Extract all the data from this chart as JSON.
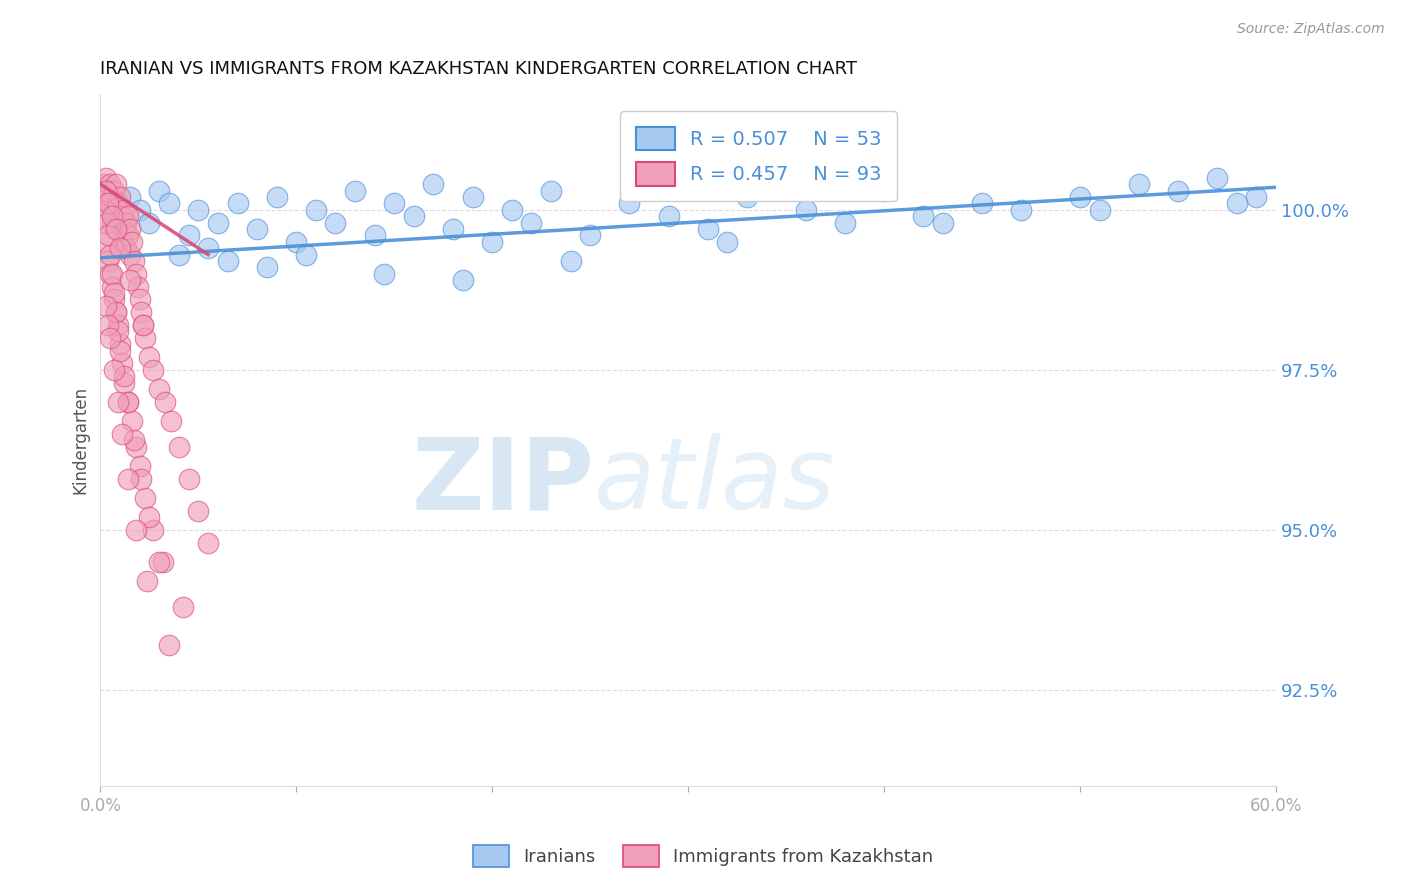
{
  "title": "IRANIAN VS IMMIGRANTS FROM KAZAKHSTAN KINDERGARTEN CORRELATION CHART",
  "source_text": "Source: ZipAtlas.com",
  "ylabel": "Kindergarten",
  "xlim": [
    0.0,
    60.0
  ],
  "ylim": [
    91.0,
    101.8
  ],
  "yticks": [
    92.5,
    95.0,
    97.5,
    100.0
  ],
  "ytick_labels": [
    "92.5%",
    "95.0%",
    "97.5%",
    "100.0%"
  ],
  "xticks": [
    0.0,
    10.0,
    20.0,
    30.0,
    40.0,
    50.0,
    60.0
  ],
  "xtick_labels": [
    "0.0%",
    "",
    "",
    "",
    "",
    "",
    "60.0%"
  ],
  "blue_color": "#a8c8f0",
  "pink_color": "#f0a0b8",
  "blue_line_color": "#4a90d9",
  "pink_line_color": "#d94a7a",
  "legend_R_blue": "R = 0.507",
  "legend_N_blue": "N = 53",
  "legend_R_pink": "R = 0.457",
  "legend_N_pink": "N = 93",
  "watermark_zip": "ZIP",
  "watermark_atlas": "atlas",
  "background_color": "#ffffff",
  "title_color": "#111111",
  "axis_label_color": "#555555",
  "tick_color": "#aaaaaa",
  "right_tick_color": "#4a90d9",
  "blue_scatter_x": [
    1.5,
    2.0,
    2.5,
    3.0,
    3.5,
    4.5,
    5.0,
    5.5,
    6.0,
    7.0,
    8.0,
    9.0,
    10.0,
    11.0,
    12.0,
    13.0,
    14.0,
    15.0,
    16.0,
    17.0,
    18.0,
    19.0,
    20.0,
    21.0,
    22.0,
    23.0,
    25.0,
    27.0,
    29.0,
    31.0,
    33.0,
    36.0,
    38.0,
    40.0,
    42.0,
    45.0,
    47.0,
    50.0,
    53.0,
    55.0,
    57.0,
    59.0,
    4.0,
    6.5,
    8.5,
    10.5,
    14.5,
    18.5,
    24.0,
    32.0,
    43.0,
    51.0,
    58.0
  ],
  "blue_scatter_y": [
    100.2,
    100.0,
    99.8,
    100.3,
    100.1,
    99.6,
    100.0,
    99.4,
    99.8,
    100.1,
    99.7,
    100.2,
    99.5,
    100.0,
    99.8,
    100.3,
    99.6,
    100.1,
    99.9,
    100.4,
    99.7,
    100.2,
    99.5,
    100.0,
    99.8,
    100.3,
    99.6,
    100.1,
    99.9,
    99.7,
    100.2,
    100.0,
    99.8,
    100.3,
    99.9,
    100.1,
    100.0,
    100.2,
    100.4,
    100.3,
    100.5,
    100.2,
    99.3,
    99.2,
    99.1,
    99.3,
    99.0,
    98.9,
    99.2,
    99.5,
    99.8,
    100.0,
    100.1
  ],
  "pink_scatter_x": [
    0.2,
    0.3,
    0.3,
    0.4,
    0.4,
    0.5,
    0.5,
    0.6,
    0.6,
    0.7,
    0.7,
    0.8,
    0.8,
    0.9,
    0.9,
    1.0,
    1.0,
    1.1,
    1.1,
    1.2,
    1.2,
    1.3,
    1.3,
    1.4,
    1.4,
    1.5,
    1.5,
    1.6,
    1.7,
    1.8,
    1.9,
    2.0,
    2.1,
    2.2,
    2.3,
    2.5,
    2.7,
    3.0,
    3.3,
    3.6,
    4.0,
    4.5,
    5.0,
    5.5,
    0.3,
    0.4,
    0.5,
    0.6,
    0.7,
    0.8,
    0.9,
    1.0,
    1.1,
    1.2,
    1.4,
    1.6,
    1.8,
    2.0,
    2.3,
    2.7,
    3.2,
    4.2,
    0.3,
    0.4,
    0.5,
    0.6,
    0.7,
    0.8,
    0.9,
    1.0,
    1.2,
    1.4,
    1.7,
    2.1,
    2.5,
    3.0,
    0.3,
    0.4,
    0.5,
    0.7,
    0.9,
    1.1,
    1.4,
    1.8,
    2.4,
    3.5,
    0.3,
    0.4,
    0.6,
    0.8,
    1.0,
    1.5,
    2.2
  ],
  "pink_scatter_y": [
    100.4,
    100.5,
    100.2,
    100.3,
    100.0,
    100.4,
    100.1,
    99.8,
    100.2,
    99.9,
    100.3,
    100.0,
    100.4,
    99.7,
    100.1,
    99.8,
    100.2,
    99.5,
    99.9,
    99.7,
    100.0,
    99.4,
    99.8,
    99.6,
    99.9,
    99.3,
    99.7,
    99.5,
    99.2,
    99.0,
    98.8,
    98.6,
    98.4,
    98.2,
    98.0,
    97.7,
    97.5,
    97.2,
    97.0,
    96.7,
    96.3,
    95.8,
    95.3,
    94.8,
    99.5,
    99.2,
    99.0,
    98.8,
    98.6,
    98.4,
    98.2,
    97.9,
    97.6,
    97.3,
    97.0,
    96.7,
    96.3,
    96.0,
    95.5,
    95.0,
    94.5,
    93.8,
    99.8,
    99.6,
    99.3,
    99.0,
    98.7,
    98.4,
    98.1,
    97.8,
    97.4,
    97.0,
    96.4,
    95.8,
    95.2,
    94.5,
    98.5,
    98.2,
    98.0,
    97.5,
    97.0,
    96.5,
    95.8,
    95.0,
    94.2,
    93.2,
    100.3,
    100.1,
    99.9,
    99.7,
    99.4,
    98.9,
    98.2
  ],
  "blue_trendline_x": [
    0.0,
    60.0
  ],
  "blue_trendline_y": [
    99.25,
    100.35
  ],
  "pink_trendline_x": [
    0.0,
    5.5
  ],
  "pink_trendline_y": [
    100.4,
    99.3
  ]
}
